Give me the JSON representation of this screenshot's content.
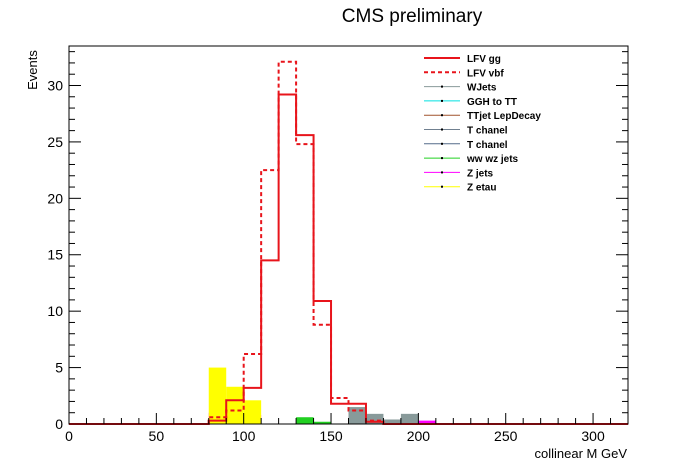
{
  "chart_data": {
    "type": "bar",
    "title": "CMS preliminary",
    "xlabel": "collinear M GeV",
    "ylabel": "Events",
    "xlim": [
      0,
      320
    ],
    "ylim": [
      0,
      33.5
    ],
    "x_ticks": [
      0,
      50,
      100,
      150,
      200,
      250,
      300
    ],
    "y_ticks": [
      0,
      5,
      10,
      15,
      20,
      25,
      30
    ],
    "bin_width": 10,
    "legend_position": "top-right",
    "series": [
      {
        "name": "LFV gg",
        "style": "line-solid",
        "color": "#e8141b",
        "bins": [
          [
            80,
            0.3
          ],
          [
            90,
            2.1
          ],
          [
            100,
            3.2
          ],
          [
            110,
            14.5
          ],
          [
            120,
            29.2
          ],
          [
            130,
            25.6
          ],
          [
            140,
            10.9
          ],
          [
            150,
            1.8
          ],
          [
            160,
            1.8
          ],
          [
            170,
            0.2
          ]
        ]
      },
      {
        "name": "LFV vbf",
        "style": "line-dashed",
        "color": "#e8141b",
        "bins": [
          [
            80,
            0.6
          ],
          [
            90,
            1.2
          ],
          [
            100,
            6.2
          ],
          [
            110,
            22.5
          ],
          [
            120,
            32.1
          ],
          [
            130,
            24.8
          ],
          [
            140,
            8.8
          ],
          [
            150,
            2.3
          ],
          [
            160,
            1.2
          ],
          [
            170,
            0.3
          ]
        ]
      },
      {
        "name": "WJets",
        "style": "fill",
        "color": "#889a9a",
        "bins": [
          [
            160,
            1.5
          ],
          [
            170,
            0.9
          ],
          [
            180,
            0.4
          ],
          [
            190,
            0.9
          ]
        ]
      },
      {
        "name": "GGH to TT",
        "style": "fill",
        "color": "#00e0e0",
        "bins": []
      },
      {
        "name": "TTjet LepDecay",
        "style": "fill",
        "color": "#a0522d",
        "bins": []
      },
      {
        "name": "T chanel",
        "style": "fill",
        "color": "#708090",
        "bins": []
      },
      {
        "name": "T chanel",
        "style": "fill",
        "color": "#556b8a",
        "bins": []
      },
      {
        "name": "ww wz jets",
        "style": "fill",
        "color": "#22d022",
        "bins": [
          [
            130,
            0.6
          ],
          [
            140,
            0.2
          ]
        ]
      },
      {
        "name": "Z jets",
        "style": "fill",
        "color": "#ff00ff",
        "bins": [
          [
            80,
            1.0
          ],
          [
            90,
            0.8
          ],
          [
            100,
            0.8
          ],
          [
            200,
            0.3
          ]
        ]
      },
      {
        "name": "Z etau",
        "style": "fill",
        "color": "#ffff00",
        "bins": [
          [
            80,
            5.0
          ],
          [
            90,
            3.3
          ],
          [
            100,
            2.1
          ]
        ]
      }
    ]
  }
}
